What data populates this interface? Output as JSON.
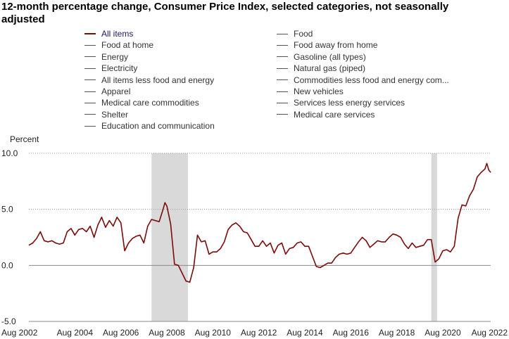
{
  "chart_data": {
    "type": "line",
    "title": "12-month percentage change, Consumer Price Index, selected categories, not seasonally adjusted",
    "ylabel": "Percent",
    "ylim": [
      -5,
      10
    ],
    "yticks": [
      "10.0",
      "5.0",
      "0.0",
      "-5.0"
    ],
    "xlim": [
      2002.583,
      2022.667
    ],
    "xticks": [
      "Aug 2002",
      "Aug 2004",
      "Aug 2006",
      "Aug 2008",
      "Aug 2010",
      "Aug 2012",
      "Aug 2014",
      "Aug 2016",
      "Aug 2018",
      "Aug 2020",
      "Aug 2022"
    ],
    "grid": "horizontal dotted at 5.0 and 10.0",
    "recessions": [
      [
        2007.917,
        2009.5
      ],
      [
        2020.083,
        2020.333
      ]
    ],
    "legend": {
      "placement": "top",
      "items": [
        "All items",
        "Food",
        "Food at home",
        "Food away from home",
        "Energy",
        "Gasoline (all types)",
        "Electricity",
        "Natural gas (piped)",
        "All items less food and energy",
        "Commodities less food and energy com...",
        "Apparel",
        "New vehicles",
        "Medical care commodities",
        "Services less energy services",
        "Shelter",
        "Medical care services",
        "Education and communication"
      ],
      "active": "All items"
    },
    "series": [
      {
        "name": "All items",
        "color": "#7b0a0a",
        "x": [
          2002.583,
          2002.75,
          2002.917,
          2003.083,
          2003.25,
          2003.417,
          2003.583,
          2003.75,
          2003.917,
          2004.083,
          2004.25,
          2004.417,
          2004.583,
          2004.75,
          2004.917,
          2005.083,
          2005.25,
          2005.417,
          2005.583,
          2005.75,
          2005.917,
          2006.083,
          2006.25,
          2006.417,
          2006.583,
          2006.75,
          2006.917,
          2007.083,
          2007.25,
          2007.417,
          2007.583,
          2007.75,
          2007.917,
          2008.083,
          2008.25,
          2008.417,
          2008.5,
          2008.583,
          2008.75,
          2008.917,
          2009.083,
          2009.25,
          2009.417,
          2009.583,
          2009.75,
          2009.917,
          2010.083,
          2010.25,
          2010.417,
          2010.583,
          2010.75,
          2010.917,
          2011.083,
          2011.25,
          2011.417,
          2011.583,
          2011.75,
          2011.917,
          2012.083,
          2012.25,
          2012.417,
          2012.583,
          2012.75,
          2012.917,
          2013.083,
          2013.25,
          2013.417,
          2013.583,
          2013.75,
          2013.917,
          2014.083,
          2014.25,
          2014.417,
          2014.583,
          2014.75,
          2014.917,
          2015.083,
          2015.25,
          2015.417,
          2015.583,
          2015.75,
          2015.917,
          2016.083,
          2016.25,
          2016.417,
          2016.583,
          2016.75,
          2016.917,
          2017.083,
          2017.25,
          2017.417,
          2017.583,
          2017.75,
          2017.917,
          2018.083,
          2018.25,
          2018.417,
          2018.583,
          2018.75,
          2018.917,
          2019.083,
          2019.25,
          2019.417,
          2019.583,
          2019.75,
          2019.917,
          2020.083,
          2020.25,
          2020.417,
          2020.583,
          2020.75,
          2020.917,
          2021.083,
          2021.25,
          2021.417,
          2021.583,
          2021.75,
          2021.917,
          2022.083,
          2022.25,
          2022.417,
          2022.5,
          2022.583,
          2022.667
        ],
        "values": [
          1.8,
          2.0,
          2.4,
          3.0,
          2.2,
          2.1,
          2.2,
          2.0,
          1.9,
          2.0,
          3.0,
          3.3,
          2.7,
          3.2,
          3.3,
          3.0,
          3.5,
          2.5,
          3.6,
          4.3,
          3.4,
          4.0,
          3.5,
          4.3,
          3.8,
          1.3,
          2.0,
          2.4,
          2.6,
          2.7,
          2.0,
          3.5,
          4.1,
          4.0,
          3.9,
          5.0,
          5.6,
          5.3,
          3.7,
          0.1,
          0.0,
          -0.7,
          -1.4,
          -1.5,
          -0.2,
          2.7,
          2.1,
          2.2,
          1.0,
          1.2,
          1.2,
          1.5,
          2.1,
          3.2,
          3.6,
          3.8,
          3.5,
          3.0,
          2.9,
          2.3,
          1.7,
          1.7,
          2.2,
          1.7,
          2.0,
          1.1,
          1.8,
          2.0,
          1.0,
          1.5,
          1.6,
          2.0,
          2.1,
          1.7,
          1.7,
          0.8,
          -0.1,
          -0.2,
          0.0,
          0.2,
          0.2,
          0.7,
          1.0,
          1.1,
          1.0,
          1.1,
          1.6,
          2.1,
          2.5,
          2.2,
          1.6,
          1.9,
          2.2,
          2.1,
          2.1,
          2.5,
          2.8,
          2.7,
          2.5,
          1.9,
          1.5,
          2.0,
          1.6,
          1.7,
          1.8,
          2.3,
          2.3,
          0.3,
          0.6,
          1.3,
          1.4,
          1.2,
          1.7,
          4.2,
          5.4,
          5.3,
          6.2,
          6.8,
          7.9,
          8.3,
          8.6,
          9.1,
          8.5,
          8.3
        ]
      }
    ]
  }
}
